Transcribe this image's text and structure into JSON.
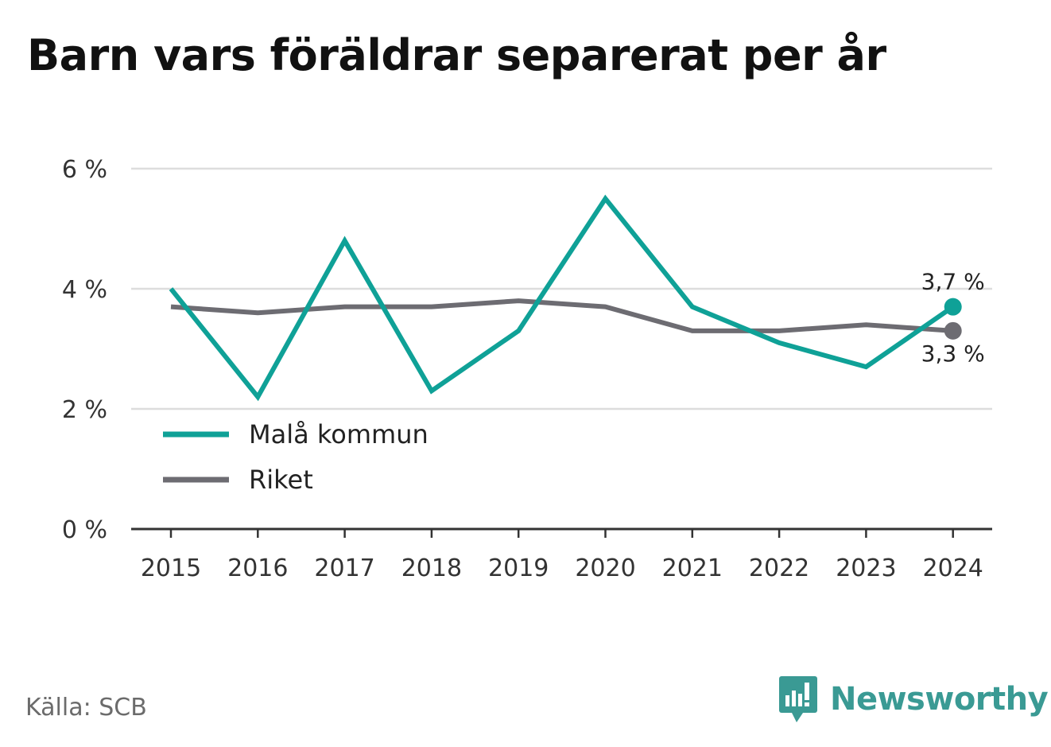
{
  "title": "Barn vars föräldrar separerat per år",
  "source": "Källa: SCB",
  "brand": {
    "name": "Newsworthy"
  },
  "colors": {
    "primary": "#0fa197",
    "secondary": "#6d6c72",
    "grid": "#dddddd",
    "axis": "#333333",
    "text": "#333333"
  },
  "chart_data": {
    "type": "line",
    "x": [
      "2015",
      "2016",
      "2017",
      "2018",
      "2019",
      "2020",
      "2021",
      "2022",
      "2023",
      "2024"
    ],
    "series": [
      {
        "name": "Malå kommun",
        "color": "#0fa197",
        "values": [
          4.0,
          2.2,
          4.8,
          2.3,
          3.3,
          5.5,
          3.7,
          3.1,
          2.7,
          3.7
        ]
      },
      {
        "name": "Riket",
        "color": "#6d6c72",
        "values": [
          3.7,
          3.6,
          3.7,
          3.7,
          3.8,
          3.7,
          3.3,
          3.3,
          3.4,
          3.3
        ]
      }
    ],
    "ylim": [
      0,
      6
    ],
    "yticks": [
      {
        "value": 0,
        "label": "0 %"
      },
      {
        "value": 2,
        "label": "2 %"
      },
      {
        "value": 4,
        "label": "4 %"
      },
      {
        "value": 6,
        "label": "6 %"
      }
    ],
    "end_labels": [
      "3,7 %",
      "3,3 %"
    ],
    "grid": true,
    "legend": "bottom-left"
  }
}
